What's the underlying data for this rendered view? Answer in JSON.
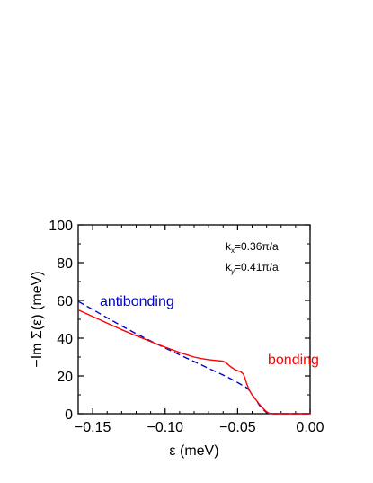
{
  "chart_data": {
    "type": "line",
    "xlabel": "ε (meV)",
    "ylabel": "−Im Σ(ε) (meV)",
    "xlim": [
      -0.16,
      0.0
    ],
    "ylim": [
      0,
      100
    ],
    "x_ticks": [
      -0.15,
      -0.1,
      -0.05,
      0.0
    ],
    "x_tick_labels": [
      "−0.15",
      "−0.10",
      "−0.05",
      "0.00"
    ],
    "y_ticks": [
      0,
      20,
      40,
      60,
      80,
      100
    ],
    "y_tick_labels": [
      "0",
      "20",
      "40",
      "60",
      "80",
      "100"
    ],
    "grid": false,
    "annotations": {
      "kx": {
        "k": "k",
        "sub": "x",
        "rest": "=0.36π/a"
      },
      "ky": {
        "k": "k",
        "sub": "y",
        "rest": "=0.41π/a"
      }
    },
    "series": [
      {
        "name": "antibonding",
        "color": "#0000cc",
        "style": "dashed",
        "x": [
          -0.16,
          -0.15,
          -0.14,
          -0.13,
          -0.12,
          -0.11,
          -0.1,
          -0.09,
          -0.08,
          -0.07,
          -0.06,
          -0.055,
          -0.05,
          -0.047,
          -0.045,
          -0.042,
          -0.04,
          -0.037,
          -0.035,
          -0.032,
          -0.03,
          -0.028,
          -0.025,
          -0.02,
          -0.01,
          0.0
        ],
        "y": [
          59.5,
          55.2,
          50.8,
          46.5,
          42.4,
          38.5,
          34.8,
          31.2,
          27.6,
          24.0,
          20.5,
          18.6,
          16.5,
          15.2,
          14.5,
          12.5,
          10.0,
          7.0,
          4.5,
          2.0,
          0.6,
          0.0,
          0.0,
          0.0,
          0.0,
          0.0
        ]
      },
      {
        "name": "bonding",
        "color": "#ff0000",
        "style": "solid",
        "x": [
          -0.16,
          -0.15,
          -0.14,
          -0.13,
          -0.12,
          -0.11,
          -0.1,
          -0.09,
          -0.08,
          -0.075,
          -0.07,
          -0.065,
          -0.06,
          -0.058,
          -0.055,
          -0.052,
          -0.05,
          -0.048,
          -0.046,
          -0.045,
          -0.044,
          -0.042,
          -0.04,
          -0.037,
          -0.035,
          -0.032,
          -0.03,
          -0.028,
          -0.025,
          -0.02,
          -0.01,
          0.0
        ],
        "y": [
          55.0,
          51.5,
          48.0,
          44.5,
          41.3,
          38.2,
          35.2,
          32.4,
          30.0,
          29.2,
          28.6,
          28.2,
          27.8,
          27.0,
          25.0,
          23.4,
          22.8,
          22.3,
          21.0,
          19.0,
          16.5,
          12.5,
          10.0,
          7.0,
          5.0,
          2.5,
          1.0,
          0.2,
          0.0,
          0.0,
          0.0,
          0.0
        ]
      }
    ]
  }
}
